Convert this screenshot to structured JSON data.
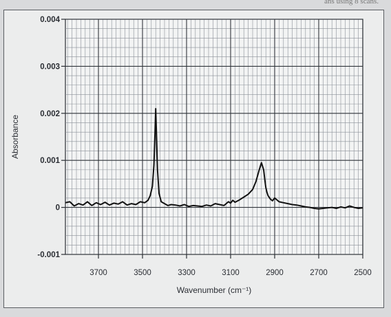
{
  "header_note": "ans using 8 scans.",
  "chart_data": {
    "type": "line",
    "title": "",
    "xlabel": "Wavenumber (cm⁻¹)",
    "ylabel": "Absorbance",
    "xlim": [
      3850,
      2500
    ],
    "ylim": [
      -0.001,
      0.004
    ],
    "x_ticks": [
      {
        "value": 3700,
        "label": "3700"
      },
      {
        "value": 3500,
        "label": "3500"
      },
      {
        "value": 3300,
        "label": "3300"
      },
      {
        "value": 3100,
        "label": "3100"
      },
      {
        "value": 2900,
        "label": "2900"
      },
      {
        "value": 2700,
        "label": "2700"
      },
      {
        "value": 2500,
        "label": "2500"
      }
    ],
    "y_ticks": [
      {
        "value": 0.004,
        "label": "0.004"
      },
      {
        "value": 0.003,
        "label": "0.003"
      },
      {
        "value": 0.002,
        "label": "0.002"
      },
      {
        "value": 0.001,
        "label": "0.001"
      },
      {
        "value": 0,
        "label": "0"
      },
      {
        "value": -0.001,
        "label": "-0.001"
      }
    ],
    "grid": true,
    "series": [
      {
        "name": "",
        "x": [
          3850,
          3830,
          3810,
          3790,
          3770,
          3750,
          3730,
          3710,
          3690,
          3670,
          3650,
          3630,
          3610,
          3590,
          3570,
          3550,
          3530,
          3510,
          3490,
          3475,
          3465,
          3455,
          3448,
          3443,
          3440,
          3437,
          3432,
          3425,
          3415,
          3400,
          3385,
          3370,
          3350,
          3330,
          3310,
          3290,
          3270,
          3250,
          3230,
          3210,
          3190,
          3170,
          3150,
          3130,
          3110,
          3100,
          3090,
          3080,
          3060,
          3040,
          3020,
          3000,
          2985,
          2970,
          2960,
          2950,
          2945,
          2940,
          2935,
          2930,
          2920,
          2910,
          2900,
          2880,
          2860,
          2840,
          2820,
          2800,
          2780,
          2760,
          2740,
          2720,
          2700,
          2680,
          2660,
          2640,
          2620,
          2600,
          2580,
          2560,
          2540,
          2520,
          2500
        ],
        "y": [
          0.0001,
          0.00012,
          3e-05,
          8e-05,
          5e-05,
          0.00012,
          4e-05,
          0.0001,
          6e-05,
          0.00011,
          5e-05,
          9e-05,
          7e-05,
          0.00012,
          5e-05,
          8e-05,
          6e-05,
          0.00012,
          0.0001,
          0.00015,
          0.00025,
          0.00045,
          0.0009,
          0.0016,
          0.0021,
          0.0016,
          0.0008,
          0.0003,
          0.00012,
          8e-05,
          4e-05,
          6e-05,
          5e-05,
          3e-05,
          6e-05,
          2e-05,
          4e-05,
          3e-05,
          2e-05,
          5e-05,
          3e-05,
          8e-05,
          6e-05,
          4e-05,
          0.00012,
          9e-05,
          0.00015,
          0.00011,
          0.00016,
          0.00022,
          0.00028,
          0.00038,
          0.00055,
          0.0008,
          0.00095,
          0.0008,
          0.0006,
          0.00042,
          0.00032,
          0.00025,
          0.00018,
          0.00014,
          0.0002,
          0.00012,
          0.0001,
          8e-05,
          6e-05,
          5e-05,
          3e-05,
          1e-05,
          0.0,
          -2e-05,
          -3e-05,
          -2e-05,
          -1e-05,
          0.0,
          -2e-05,
          1e-05,
          -1e-05,
          3e-05,
          0.0,
          -2e-05,
          -1e-05
        ]
      }
    ]
  }
}
